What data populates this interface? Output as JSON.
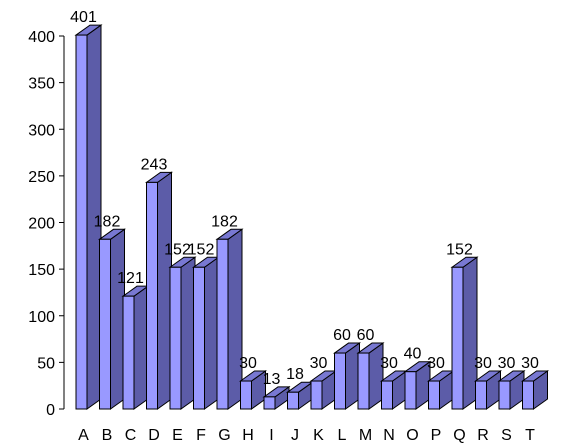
{
  "chart_data": {
    "type": "bar",
    "style": "3d-column",
    "title": "",
    "xlabel": "",
    "ylabel": "",
    "categories": [
      "A",
      "B",
      "C",
      "D",
      "E",
      "F",
      "G",
      "H",
      "I",
      "J",
      "K",
      "L",
      "M",
      "N",
      "O",
      "P",
      "Q",
      "R",
      "S",
      "T"
    ],
    "values": [
      401,
      182,
      121,
      243,
      152,
      152,
      182,
      30,
      13,
      18,
      30,
      60,
      60,
      30,
      40,
      30,
      152,
      30,
      30,
      30
    ],
    "data_labels": [
      "401",
      "182",
      "121",
      "243",
      "152",
      "152",
      "182",
      "30",
      "13",
      "18",
      "30",
      "60",
      "60",
      "30",
      "40",
      "30",
      "152",
      "30",
      "30",
      "30"
    ],
    "ylim": [
      0,
      400
    ],
    "yticks": [
      "0",
      "50",
      "100",
      "150",
      "200",
      "250",
      "300",
      "350",
      "400"
    ],
    "grid": false,
    "legend": "none",
    "colors": {
      "bar_front": "#9999ff",
      "bar_side": "#5c5ca8",
      "bar_top": "#7878d2",
      "bar_edge": "#000000",
      "axis": "#000000"
    }
  }
}
